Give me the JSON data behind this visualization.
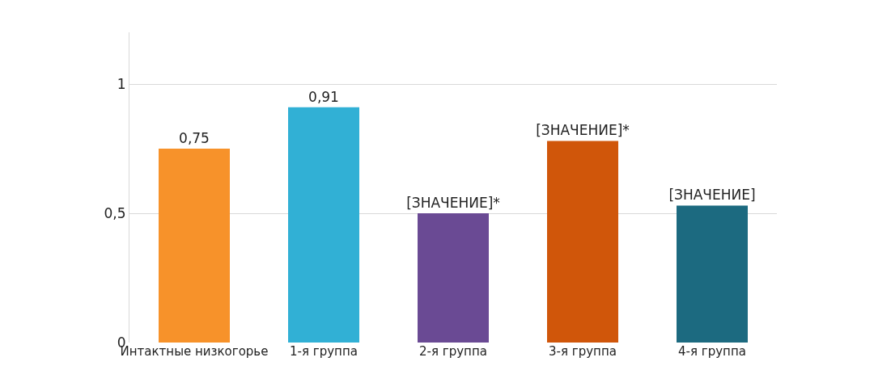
{
  "chart_data": {
    "type": "bar",
    "categories": [
      "Интактные низкогорье",
      "1-я группа",
      "2-я группа",
      "3-я группа",
      "4-я группа"
    ],
    "values": [
      0.75,
      0.91,
      0.5,
      0.78,
      0.53
    ],
    "colors": [
      "#f7922a",
      "#31b0d5",
      "#6a4a94",
      "#d0560a",
      "#1c6a80"
    ],
    "value_labels": [
      "0,75",
      "0,91",
      "[ЗНАЧЕНИЕ]*",
      "[ЗНАЧЕНИЕ]*",
      "[ЗНАЧЕНИЕ]"
    ],
    "ylim": [
      0,
      1.2
    ],
    "yticks": [
      0,
      {
        "value": 0.5,
        "label": "0,5"
      },
      1
    ],
    "grid": "y"
  }
}
